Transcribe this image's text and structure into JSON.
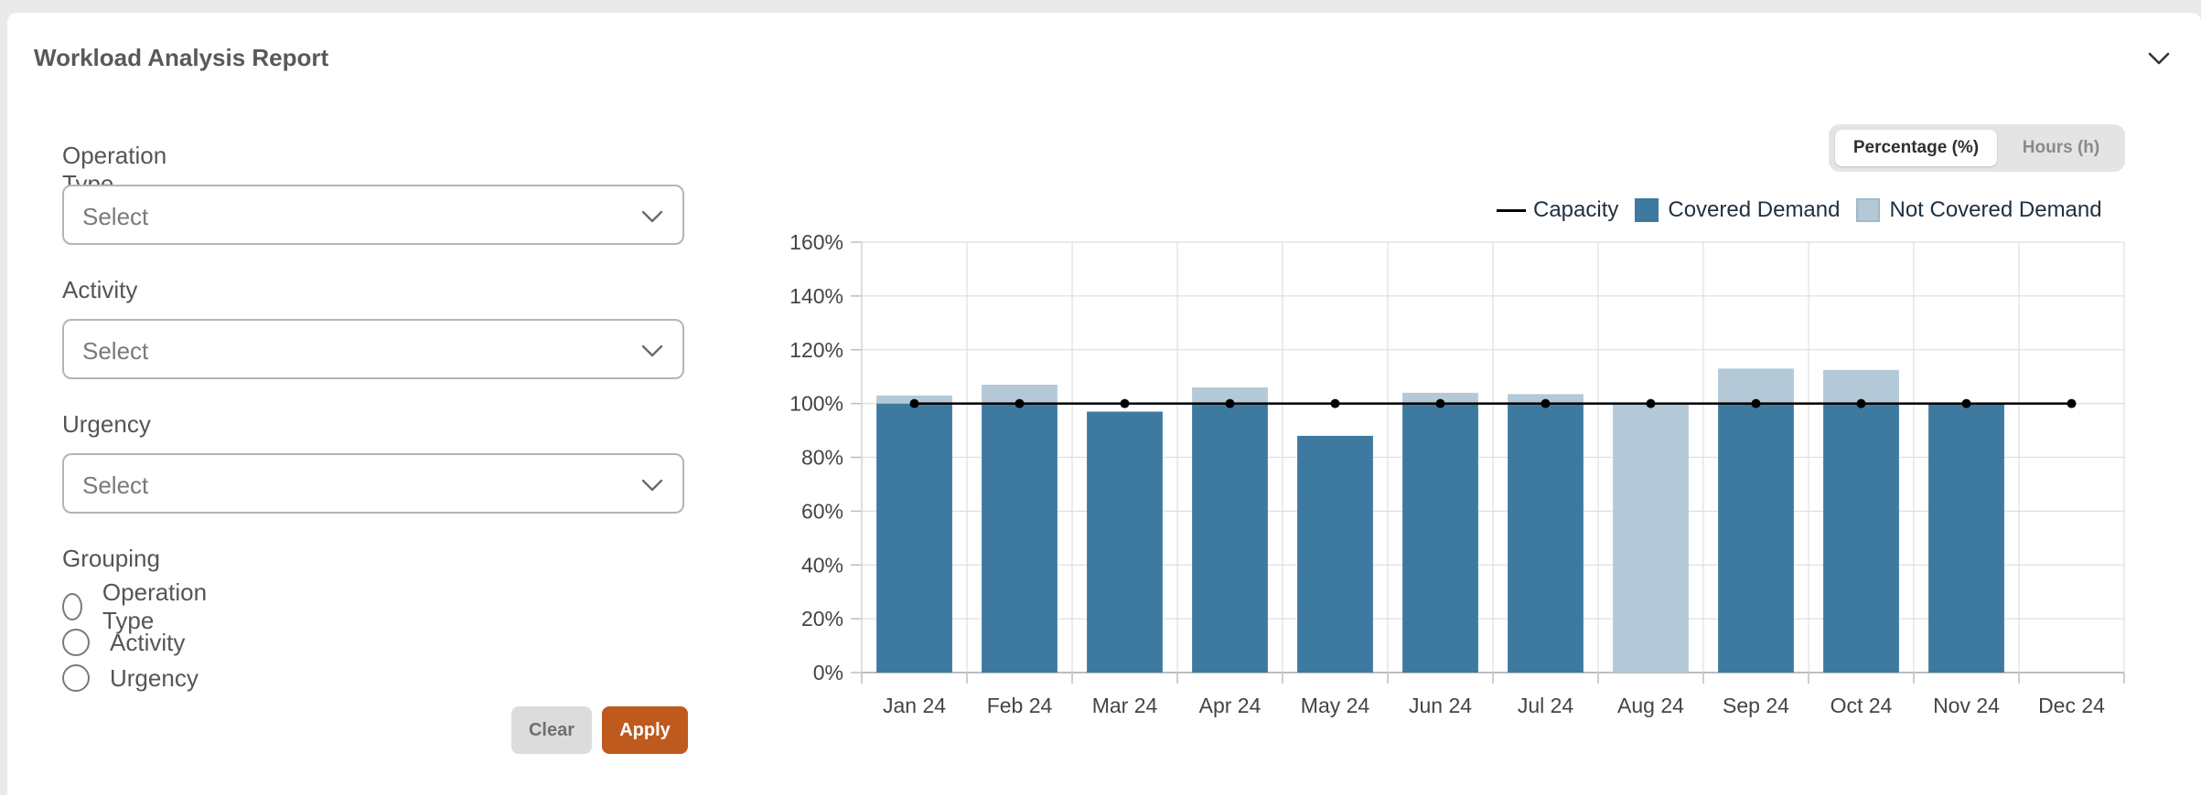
{
  "report": {
    "title": "Workload Analysis Report"
  },
  "icons": {
    "collapse": "chevron-up-icon",
    "select": "chevron-down-icon"
  },
  "filters": {
    "operation_type": {
      "label": "Operation Type",
      "value": "Select"
    },
    "activity": {
      "label": "Activity",
      "value": "Select"
    },
    "urgency": {
      "label": "Urgency",
      "value": "Select"
    },
    "grouping": {
      "label": "Grouping",
      "options": [
        "Operation Type",
        "Activity",
        "Urgency"
      ]
    }
  },
  "buttons": {
    "clear": "Clear",
    "apply": "Apply"
  },
  "view_toggle": {
    "percentage": "Percentage (%)",
    "hours": "Hours (h)",
    "selected": "Percentage (%)"
  },
  "legend": {
    "capacity": "Capacity",
    "covered": "Covered Demand",
    "not_covered": "Not Covered Demand"
  },
  "colors": {
    "covered": "#3e7aa0",
    "not_covered": "#b3c9d7",
    "capacity": "#000000",
    "apply": "#bf5a1f"
  },
  "chart_data": {
    "type": "bar",
    "stacked": true,
    "categories": [
      "Jan 24",
      "Feb 24",
      "Mar 24",
      "Apr 24",
      "May 24",
      "Jun 24",
      "Jul 24",
      "Aug 24",
      "Sep 24",
      "Oct 24",
      "Nov 24",
      "Dec 24"
    ],
    "series": [
      {
        "name": "Covered Demand",
        "values": [
          100,
          100,
          97,
          100,
          88,
          100,
          100,
          0,
          100,
          100,
          100,
          0
        ]
      },
      {
        "name": "Not Covered Demand",
        "values": [
          3,
          7,
          0,
          6,
          0,
          4,
          3.5,
          100,
          13,
          12.5,
          0,
          0
        ]
      },
      {
        "name": "Capacity",
        "type": "line",
        "values": [
          100,
          100,
          100,
          100,
          100,
          100,
          100,
          100,
          100,
          100,
          100,
          100
        ]
      }
    ],
    "ylim": [
      0,
      160
    ],
    "yticks": [
      "0%",
      "20%",
      "40%",
      "60%",
      "80%",
      "100%",
      "120%",
      "140%",
      "160%"
    ],
    "grid": true,
    "legend_position": "top-right"
  }
}
